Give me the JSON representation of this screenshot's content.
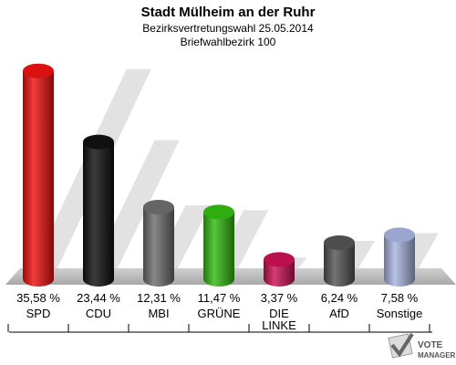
{
  "chart_data": {
    "type": "bar",
    "title": "Stadt Mülheim an der Ruhr",
    "subtitle_1": "Bezirksvertretungswahl 25.05.2014",
    "subtitle_2": "Briefwahlbezirk 100",
    "categories": [
      "SPD",
      "CDU",
      "MBI",
      "GRÜNE",
      "DIE LINKE",
      "AfD",
      "Sonstige"
    ],
    "category_lines": [
      [
        "SPD"
      ],
      [
        "CDU"
      ],
      [
        "MBI"
      ],
      [
        "GRÜNE"
      ],
      [
        "DIE",
        "LINKE"
      ],
      [
        "AfD"
      ],
      [
        "Sonstige"
      ]
    ],
    "values": [
      35.58,
      23.44,
      12.31,
      11.47,
      3.37,
      6.24,
      7.58
    ],
    "value_labels": [
      "35,58 %",
      "23,44 %",
      "12,31 %",
      "11,47 %",
      "3,37 %",
      "6,24 %",
      "7,58 %"
    ],
    "colors": [
      "#ee1111",
      "#111111",
      "#6e6e6e",
      "#33bb11",
      "#cc1155",
      "#555555",
      "#a8b4e0"
    ],
    "ylim": [
      0,
      36
    ],
    "grid": false,
    "legend": "none"
  },
  "branding": {
    "logo_line1": "VOTE",
    "logo_line2": "MANAGER"
  }
}
